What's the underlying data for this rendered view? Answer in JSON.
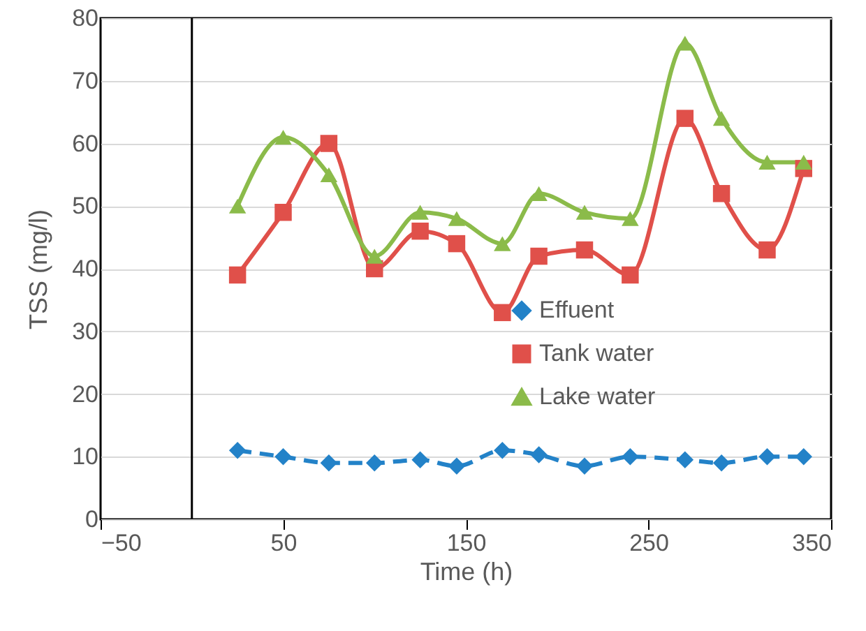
{
  "chart_data": {
    "type": "line",
    "xlabel": "Time (h)",
    "ylabel": "TSS (mg/l)",
    "x": [
      25,
      50,
      75,
      100,
      125,
      145,
      170,
      190,
      215,
      240,
      270,
      290,
      315,
      335
    ],
    "series": [
      {
        "name": "Effuent",
        "color": "#2382c8",
        "marker": "diamond",
        "line_style": "dashed",
        "values": [
          11,
          10,
          9,
          9,
          9.5,
          8.5,
          11,
          10.3,
          8.5,
          10,
          9.5,
          9,
          10,
          10
        ]
      },
      {
        "name": "Tank water",
        "color": "#e0504a",
        "marker": "square",
        "line_style": "solid",
        "values": [
          39,
          49,
          60,
          40,
          46,
          44,
          33,
          42,
          43,
          39,
          64,
          52,
          43,
          56
        ]
      },
      {
        "name": "Lake water",
        "color": "#8bbb4a",
        "marker": "triangle",
        "line_style": "solid",
        "values": [
          50,
          61,
          55,
          42,
          49,
          48,
          44,
          52,
          49,
          48,
          76,
          64,
          57,
          57
        ]
      }
    ],
    "xlim": [
      -50,
      350
    ],
    "xticks": [
      -50,
      50,
      150,
      250,
      350
    ],
    "ylim": [
      0,
      80
    ],
    "yticks": [
      0,
      10,
      20,
      30,
      40,
      50,
      60,
      70,
      80
    ],
    "ref_lines": [
      {
        "axis": "x",
        "value": 0,
        "color": "#000000"
      }
    ],
    "grid": "y",
    "legend": "right"
  }
}
